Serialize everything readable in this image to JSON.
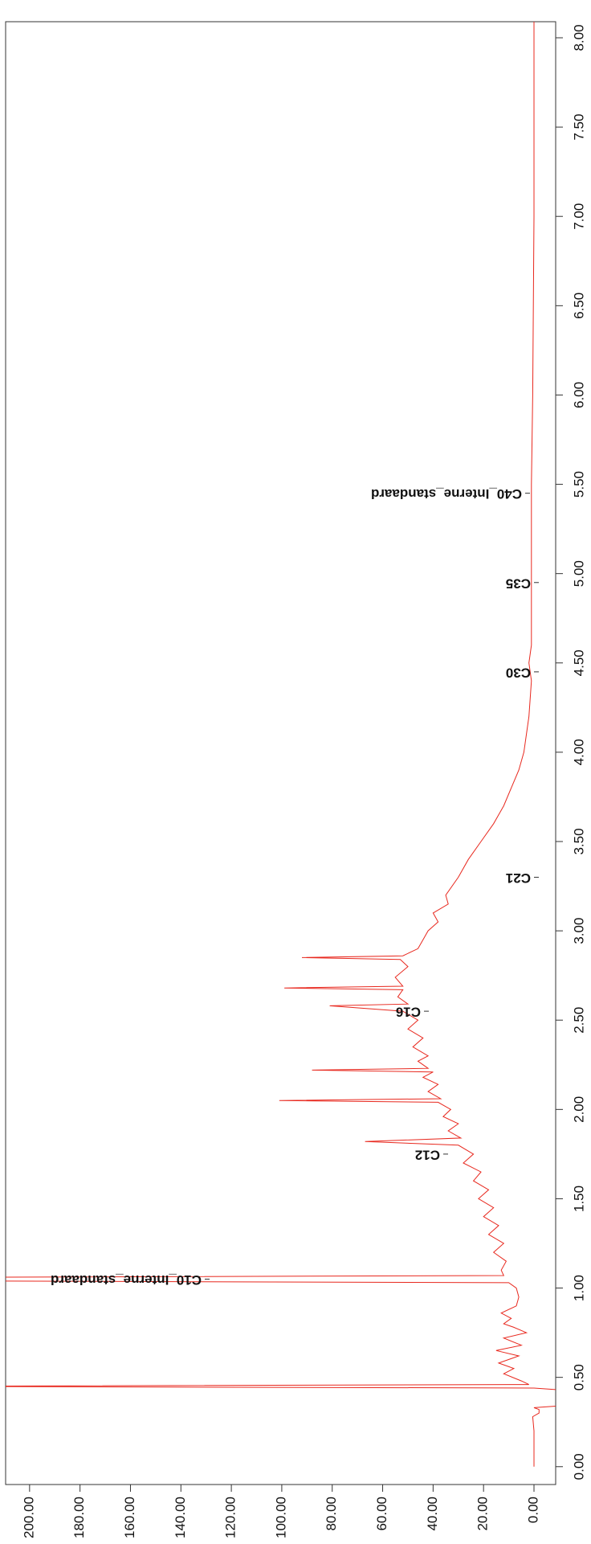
{
  "chart_data": {
    "type": "line",
    "x": [
      0,
      0.1,
      0.2,
      0.28,
      0.3,
      0.32,
      0.33,
      0.34,
      0.43,
      0.44,
      0.45,
      0.46,
      0.48,
      0.52,
      0.55,
      0.58,
      0.62,
      0.65,
      0.68,
      0.72,
      0.75,
      0.78,
      0.8,
      0.83,
      0.86,
      0.9,
      0.95,
      1.0,
      1.03,
      1.04,
      1.06,
      1.07,
      1.1,
      1.15,
      1.2,
      1.25,
      1.3,
      1.35,
      1.4,
      1.45,
      1.5,
      1.55,
      1.6,
      1.65,
      1.7,
      1.75,
      1.8,
      1.82,
      1.84,
      1.88,
      1.92,
      1.96,
      2.0,
      2.04,
      2.05,
      2.06,
      2.1,
      2.14,
      2.18,
      2.21,
      2.22,
      2.23,
      2.27,
      2.3,
      2.35,
      2.4,
      2.45,
      2.5,
      2.55,
      2.58,
      2.59,
      2.63,
      2.67,
      2.68,
      2.69,
      2.74,
      2.8,
      2.84,
      2.85,
      2.86,
      2.9,
      2.95,
      3.0,
      3.05,
      3.1,
      3.15,
      3.2,
      3.3,
      3.4,
      3.5,
      3.6,
      3.7,
      3.8,
      3.9,
      4.0,
      4.2,
      4.4,
      4.5,
      4.6,
      5.0,
      5.5,
      6.0,
      7.0,
      8.0,
      8.1
    ],
    "series": [
      {
        "color": "#e8281e",
        "values": [
          0,
          0,
          0,
          0.5,
          -2,
          -2,
          0,
          -10,
          -10,
          0,
          250,
          2,
          5,
          12,
          8,
          14,
          6,
          15,
          5,
          12,
          3,
          8,
          12,
          9,
          13,
          7,
          6,
          7,
          10,
          230,
          230,
          12,
          13,
          11,
          16,
          12,
          18,
          14,
          20,
          16,
          22,
          18,
          24,
          21,
          28,
          24,
          30,
          67,
          29,
          34,
          30,
          36,
          33,
          38,
          101,
          37,
          42,
          38,
          44,
          40,
          88,
          42,
          46,
          42,
          48,
          44,
          50,
          46,
          52,
          81,
          50,
          54,
          52,
          99,
          52,
          55,
          50,
          53,
          92,
          52,
          46,
          44,
          42,
          38,
          40,
          34,
          35,
          30,
          26,
          21,
          16,
          12,
          9,
          6,
          4,
          2,
          1,
          2,
          1,
          1,
          1,
          0.5,
          0,
          0,
          0
        ]
      }
    ],
    "annotations": [
      {
        "label": "C10_Interne_standaard",
        "x": 1.05
      },
      {
        "label": "C12",
        "x": 1.75
      },
      {
        "label": "C16",
        "x": 2.55
      },
      {
        "label": "C21",
        "x": 3.3
      },
      {
        "label": "C30",
        "x": 4.45
      },
      {
        "label": "C35",
        "x": 4.95
      },
      {
        "label": "C40_Interne_standaard",
        "x": 5.45
      }
    ],
    "xlim": [
      -0.1,
      8.09
    ],
    "xticks": [
      {
        "value": 0,
        "label": "0.00"
      },
      {
        "value": 0.5,
        "label": "0.50"
      },
      {
        "value": 1,
        "label": "1.00"
      },
      {
        "value": 1.5,
        "label": "1.50"
      },
      {
        "value": 2,
        "label": "2.00"
      },
      {
        "value": 2.5,
        "label": "2.50"
      },
      {
        "value": 3,
        "label": "3.00"
      },
      {
        "value": 3.5,
        "label": "3.50"
      },
      {
        "value": 4,
        "label": "4.00"
      },
      {
        "value": 4.5,
        "label": "4.50"
      },
      {
        "value": 5,
        "label": "5.00"
      },
      {
        "value": 5.5,
        "label": "5.50"
      },
      {
        "value": 6,
        "label": "6.00"
      },
      {
        "value": 6.5,
        "label": "6.50"
      },
      {
        "value": 7,
        "label": "7.00"
      },
      {
        "value": 7.5,
        "label": "7.50"
      },
      {
        "value": 8,
        "label": "8.00"
      }
    ],
    "ylim": [
      -8.6,
      209.5
    ],
    "yticks": [
      {
        "value": 0,
        "label": "0.00"
      },
      {
        "value": 20,
        "label": "20.00"
      },
      {
        "value": 40,
        "label": "40.00"
      },
      {
        "value": 60,
        "label": "60.00"
      },
      {
        "value": 80,
        "label": "80.00"
      },
      {
        "value": 100,
        "label": "100.00"
      },
      {
        "value": 120,
        "label": "120.00"
      },
      {
        "value": 140,
        "label": "140.00"
      },
      {
        "value": 160,
        "label": "160.00"
      },
      {
        "value": 180,
        "label": "180.00"
      },
      {
        "value": 200,
        "label": "200.00"
      }
    ]
  }
}
